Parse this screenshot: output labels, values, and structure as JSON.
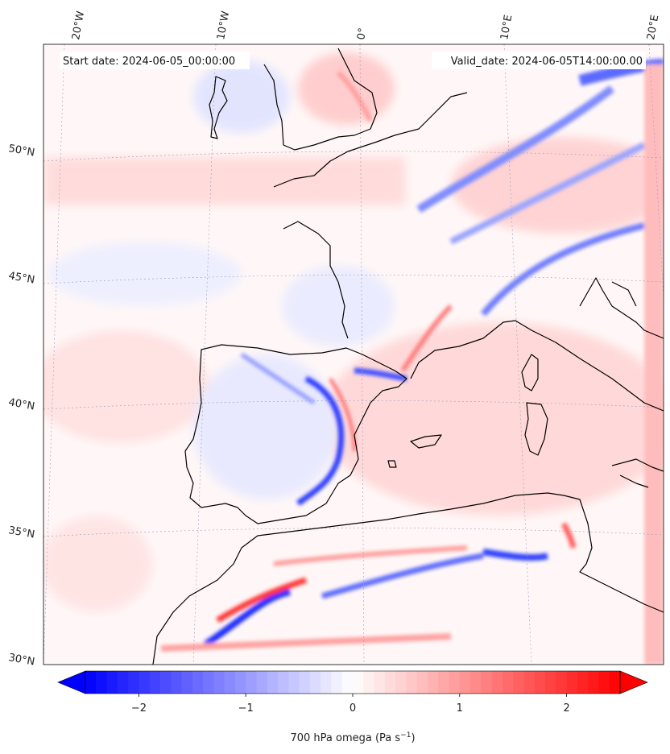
{
  "header": {
    "start_date": "Start date: 2024-06-05_00:00:00",
    "valid_date": "Valid_date: 2024-06-05T14:00:00.00"
  },
  "longitude_labels": [
    "20°W",
    "10°W",
    "0°",
    "10°E",
    "20°E"
  ],
  "latitude_labels": [
    "50°N",
    "45°N",
    "40°N",
    "35°N",
    "30°N"
  ],
  "colorbar": {
    "label": "700 hPa omega (Pa s",
    "label_sup": "−1",
    "label_end": ")",
    "ticks": [
      "−2",
      "−1",
      "0",
      "1",
      "2"
    ],
    "tick_values": [
      -2,
      -1,
      0,
      1,
      2
    ],
    "range": [
      -2.5,
      2.5
    ],
    "colormap": "bwr",
    "extend": "both"
  },
  "colors": {
    "negative": "#0000ff",
    "neutral": "#ffffff",
    "positive": "#ff0000",
    "coastline": "#000000",
    "gridline": "#9a9ab8"
  }
}
